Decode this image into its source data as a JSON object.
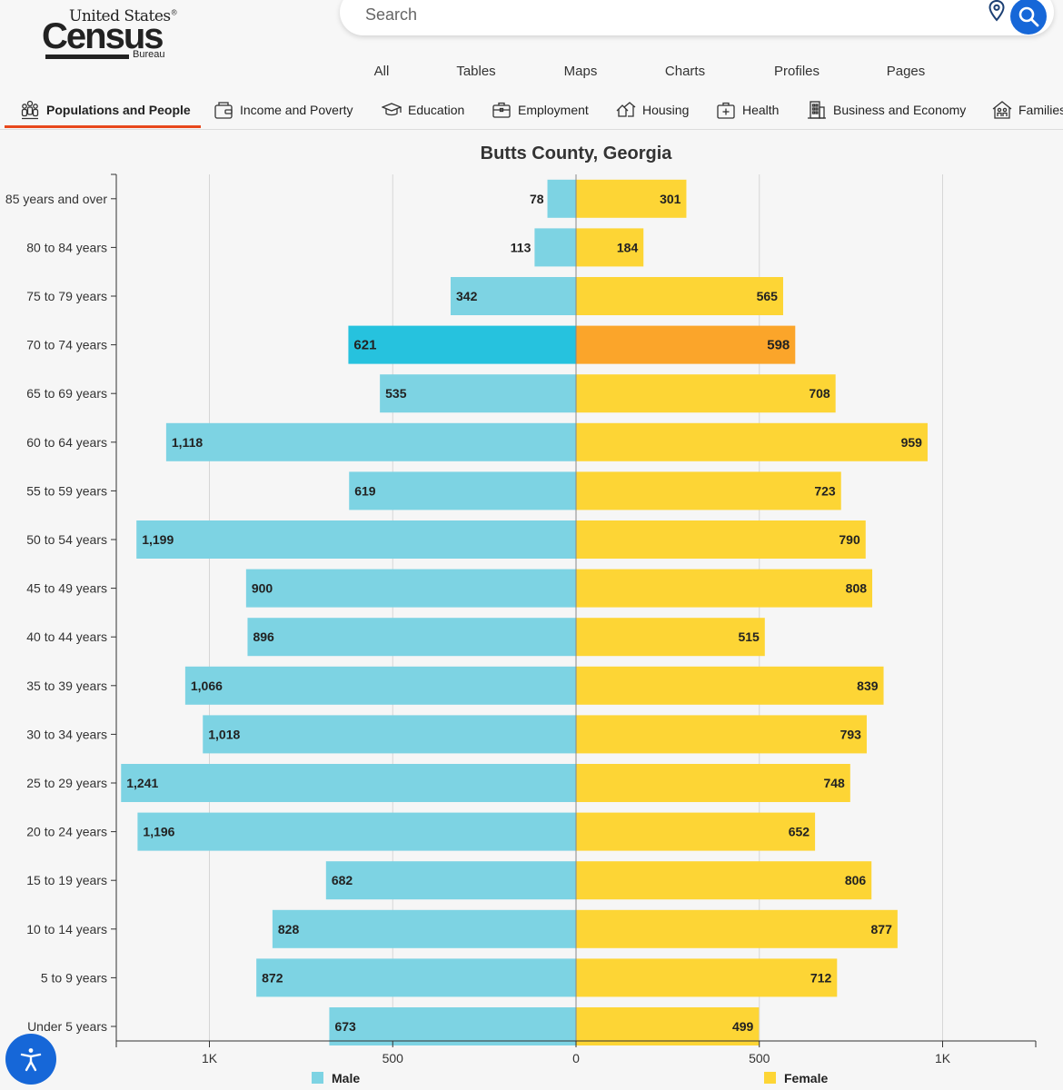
{
  "logo": {
    "line1": "United States",
    "mark": "®",
    "line2": "Census",
    "line3": "Bureau"
  },
  "search": {
    "placeholder": "Search"
  },
  "top_nav": [
    "All",
    "Tables",
    "Maps",
    "Charts",
    "Profiles",
    "Pages"
  ],
  "categories": [
    {
      "label": "Populations and People",
      "icon": "people-icon"
    },
    {
      "label": "Income and Poverty",
      "icon": "wallet-icon"
    },
    {
      "label": "Education",
      "icon": "graduation-cap-icon"
    },
    {
      "label": "Employment",
      "icon": "briefcase-icon"
    },
    {
      "label": "Housing",
      "icon": "houses-icon"
    },
    {
      "label": "Health",
      "icon": "medical-kit-icon"
    },
    {
      "label": "Business and Economy",
      "icon": "building-icon"
    },
    {
      "label": "Families",
      "icon": "family-home-icon"
    }
  ],
  "colors": {
    "male": "#7dd3e3",
    "female": "#fdd535",
    "male_highlight": "#26c2de",
    "female_highlight": "#fba52a",
    "accent": "#1667d8",
    "active_tab": "#e8481c"
  },
  "chart_data": {
    "type": "bar",
    "orientation": "horizontal-population-pyramid",
    "title": "Butts County, Georgia",
    "categories": [
      "85 years and over",
      "80 to 84 years",
      "75 to 79 years",
      "70 to 74 years",
      "65 to 69 years",
      "60 to 64 years",
      "55 to 59 years",
      "50 to 54 years",
      "45 to 49 years",
      "40 to 44 years",
      "35 to 39 years",
      "30 to 34 years",
      "25 to 29 years",
      "20 to 24 years",
      "15 to 19 years",
      "10 to 14 years",
      "5 to 9 years",
      "Under 5 years"
    ],
    "series": [
      {
        "name": "Male",
        "values": [
          78,
          113,
          342,
          621,
          535,
          1118,
          619,
          1199,
          900,
          896,
          1066,
          1018,
          1241,
          1196,
          682,
          828,
          872,
          673
        ]
      },
      {
        "name": "Female",
        "values": [
          301,
          184,
          565,
          598,
          708,
          959,
          723,
          790,
          808,
          515,
          839,
          793,
          748,
          652,
          806,
          877,
          712,
          499
        ]
      }
    ],
    "value_labels": {
      "Male": [
        "78",
        "113",
        "342",
        "621",
        "535",
        "1,118",
        "619",
        "1,199",
        "900",
        "896",
        "1,066",
        "1,018",
        "1,241",
        "1,196",
        "682",
        "828",
        "872",
        "673"
      ],
      "Female": [
        "301",
        "184",
        "565",
        "598",
        "708",
        "959",
        "723",
        "790",
        "808",
        "515",
        "839",
        "793",
        "748",
        "652",
        "806",
        "877",
        "712",
        "499"
      ]
    },
    "highlighted_category": "70 to 74 years",
    "x_ticks": [
      {
        "value": -1000,
        "label": "1K"
      },
      {
        "value": -500,
        "label": "500"
      },
      {
        "value": 0,
        "label": "0"
      },
      {
        "value": 500,
        "label": "500"
      },
      {
        "value": 1000,
        "label": "1K"
      }
    ],
    "xlim": [
      -1250,
      1250
    ],
    "grid": true,
    "legend": {
      "placement": "bottom",
      "entries": [
        "Male",
        "Female"
      ]
    }
  }
}
